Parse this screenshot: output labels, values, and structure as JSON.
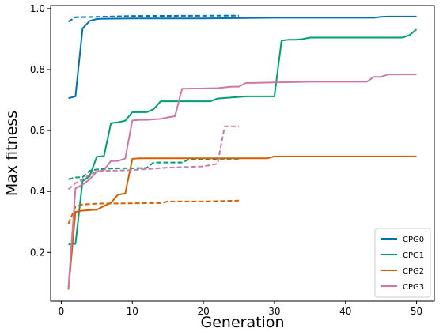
{
  "chart_data": {
    "type": "line",
    "xlabel": "Generation",
    "ylabel": "Max fitness",
    "xlim": [
      -1.5,
      52.5
    ],
    "ylim": [
      0.04,
      1.01
    ],
    "xticks": [
      0,
      10,
      20,
      30,
      40,
      50
    ],
    "yticks": [
      0.2,
      0.4,
      0.6,
      0.8,
      1.0
    ],
    "xtick_labels": [
      "0",
      "10",
      "20",
      "30",
      "40",
      "50"
    ],
    "ytick_labels": [
      "0.2",
      "0.4",
      "0.6",
      "0.8",
      "1.0"
    ],
    "grid": false,
    "legend_position": "bottom-right",
    "legend": [
      "CPG0",
      "CPG1",
      "CPG2",
      "CPG3"
    ],
    "series": [
      {
        "name": "CPG0",
        "color": "#0072b2",
        "style": "solid",
        "x": [
          1,
          2,
          3,
          4,
          5,
          6,
          10,
          20,
          30,
          40,
          44,
          45,
          46,
          47,
          50
        ],
        "y": [
          0.706,
          0.712,
          0.935,
          0.96,
          0.966,
          0.967,
          0.968,
          0.968,
          0.97,
          0.97,
          0.97,
          0.973,
          0.974,
          0.974,
          0.974
        ]
      },
      {
        "name": "CPG0",
        "color": "#0072b2",
        "style": "dashed",
        "x": [
          1,
          2,
          5,
          10,
          25
        ],
        "y": [
          0.957,
          0.972,
          0.973,
          0.976,
          0.977
        ]
      },
      {
        "name": "CPG1",
        "color": "#009e73",
        "style": "solid",
        "x": [
          1,
          2,
          3,
          4,
          5,
          6,
          7,
          8,
          9,
          10,
          12,
          13,
          14,
          17,
          18,
          21,
          22,
          26,
          30,
          31,
          32,
          33,
          34,
          35,
          44,
          48,
          49,
          50
        ],
        "y": [
          0.226,
          0.228,
          0.434,
          0.45,
          0.514,
          0.516,
          0.624,
          0.627,
          0.632,
          0.66,
          0.66,
          0.67,
          0.696,
          0.696,
          0.696,
          0.696,
          0.705,
          0.712,
          0.712,
          0.895,
          0.898,
          0.898,
          0.9,
          0.905,
          0.905,
          0.905,
          0.913,
          0.932
        ]
      },
      {
        "name": "CPG1",
        "color": "#009e73",
        "style": "dashed",
        "x": [
          1,
          2,
          3,
          4,
          5,
          7,
          8,
          10,
          12,
          13,
          15,
          16,
          17,
          18,
          20,
          22,
          23,
          24,
          25
        ],
        "y": [
          0.44,
          0.446,
          0.447,
          0.468,
          0.472,
          0.475,
          0.476,
          0.476,
          0.477,
          0.495,
          0.495,
          0.495,
          0.495,
          0.505,
          0.505,
          0.507,
          0.507,
          0.507,
          0.507
        ]
      },
      {
        "name": "CPG2",
        "color": "#d55e00",
        "style": "solid",
        "x": [
          1,
          2,
          3,
          4,
          5,
          6,
          7,
          8,
          9,
          10,
          11,
          12,
          20,
          25,
          29,
          30,
          40,
          50
        ],
        "y": [
          0.078,
          0.333,
          0.337,
          0.339,
          0.34,
          0.352,
          0.363,
          0.39,
          0.393,
          0.507,
          0.509,
          0.509,
          0.509,
          0.509,
          0.509,
          0.515,
          0.515,
          0.515
        ]
      },
      {
        "name": "CPG2",
        "color": "#d55e00",
        "style": "dashed",
        "x": [
          1,
          2,
          3,
          5,
          10,
          14,
          15,
          20,
          25
        ],
        "y": [
          0.294,
          0.35,
          0.357,
          0.36,
          0.361,
          0.362,
          0.367,
          0.367,
          0.37
        ]
      },
      {
        "name": "CPG3",
        "color": "#cc79a7",
        "style": "solid",
        "x": [
          1,
          2,
          3,
          4,
          5,
          6,
          7,
          8,
          9,
          10,
          11,
          12,
          14,
          15,
          16,
          17,
          20,
          22,
          24,
          25,
          26,
          27,
          30,
          35,
          43,
          44,
          45,
          46,
          50
        ],
        "y": [
          0.083,
          0.41,
          0.422,
          0.44,
          0.465,
          0.47,
          0.5,
          0.5,
          0.508,
          0.633,
          0.635,
          0.635,
          0.638,
          0.643,
          0.647,
          0.737,
          0.738,
          0.739,
          0.744,
          0.744,
          0.756,
          0.756,
          0.758,
          0.76,
          0.76,
          0.776,
          0.776,
          0.784,
          0.784
        ]
      },
      {
        "name": "CPG3",
        "color": "#cc79a7",
        "style": "dashed",
        "x": [
          1,
          2,
          3,
          4,
          5,
          7,
          10,
          15,
          20,
          22,
          23,
          24,
          25
        ],
        "y": [
          0.407,
          0.427,
          0.44,
          0.455,
          0.466,
          0.468,
          0.47,
          0.478,
          0.482,
          0.491,
          0.614,
          0.614,
          0.614
        ]
      }
    ]
  }
}
